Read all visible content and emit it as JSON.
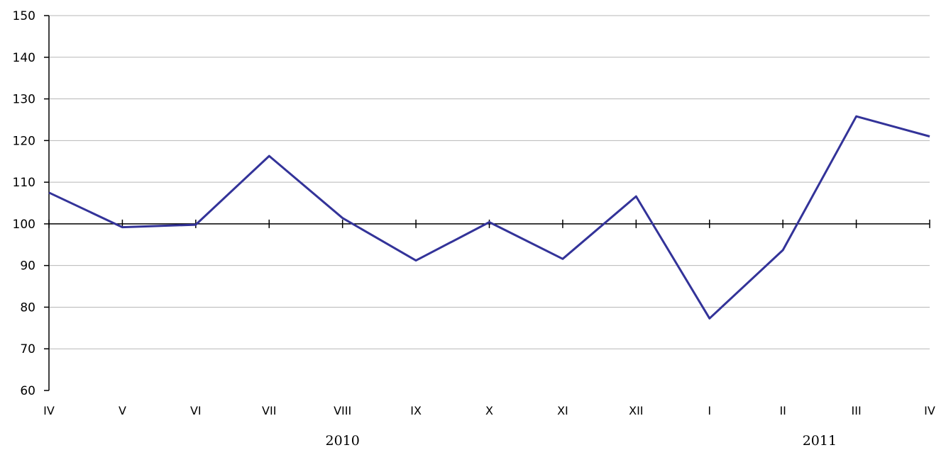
{
  "chart_data": {
    "type": "line",
    "title": "",
    "xlabel": "",
    "ylabel": "",
    "categories": [
      "IV",
      "V",
      "VI",
      "VII",
      "VIII",
      "IX",
      "X",
      "XI",
      "XII",
      "I",
      "II",
      "III",
      "IV"
    ],
    "year_labels": [
      {
        "label": "2010",
        "spans_categories": [
          0,
          8
        ]
      },
      {
        "label": "2011",
        "spans_categories": [
          9,
          12
        ]
      }
    ],
    "series": [
      {
        "values": [
          107.5,
          99.2,
          99.8,
          116.3,
          101.4,
          91.2,
          100.4,
          91.6,
          106.6,
          77.3,
          93.7,
          125.8,
          121.0
        ],
        "color": "#333399"
      }
    ],
    "ylim": [
      60,
      150
    ],
    "yticks": [
      60,
      70,
      80,
      90,
      100,
      110,
      120,
      130,
      140,
      150
    ],
    "baseline": 100,
    "grid": true,
    "legend": "none"
  }
}
